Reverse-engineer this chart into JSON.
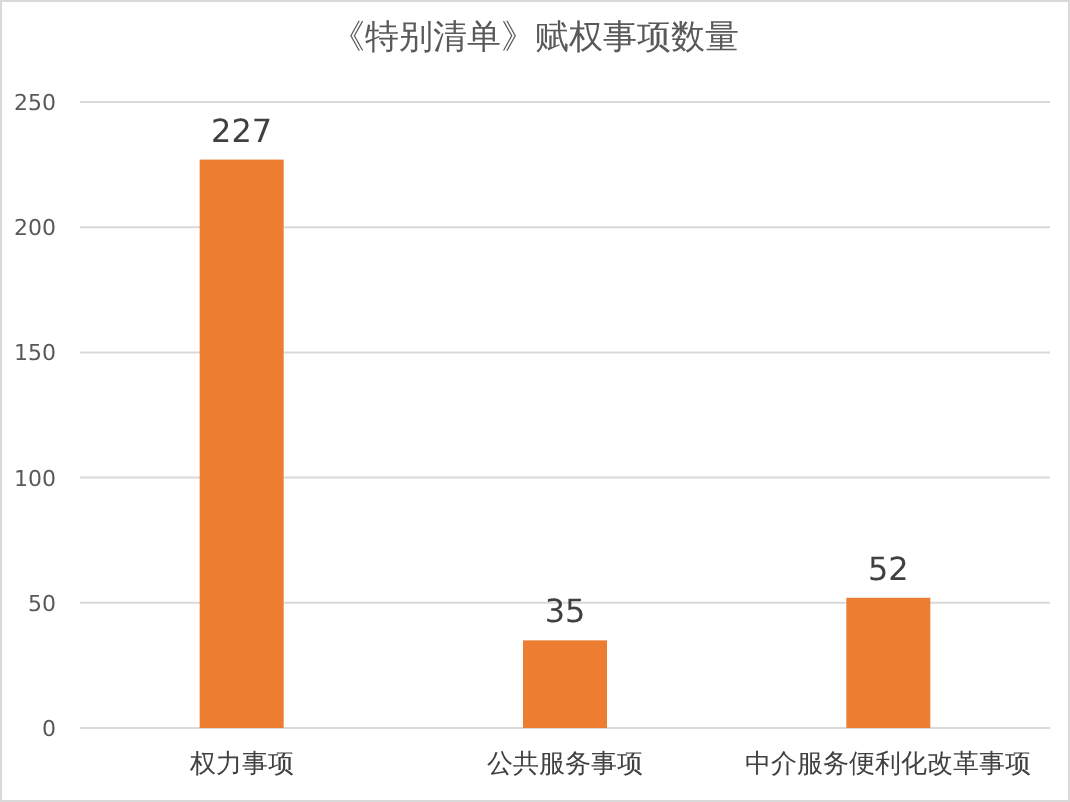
{
  "chart_data": {
    "type": "bar",
    "title": "《特别清单》赋权事项数量",
    "categories": [
      "权力事项",
      "公共服务事项",
      "中介服务便利化改革事项"
    ],
    "values": [
      227,
      35,
      52
    ],
    "color": "#ed7d31",
    "ylim": [
      0,
      250
    ],
    "yticks": [
      0,
      50,
      100,
      150,
      200,
      250
    ],
    "grid": "y",
    "data_labels": true
  }
}
